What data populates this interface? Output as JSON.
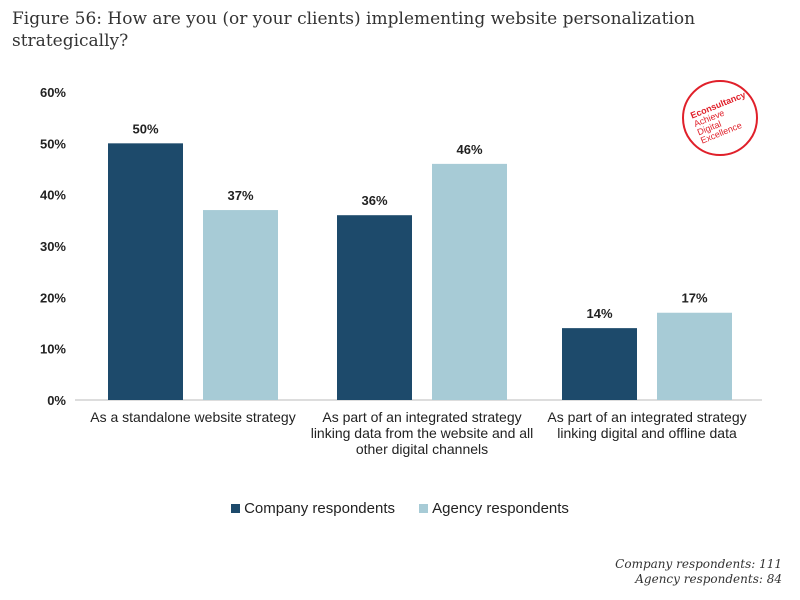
{
  "title": "Figure 56: How are you (or your clients) implementing website personalization strategically?",
  "logo": {
    "name": "Econsultancy",
    "tagline": "Achieve Digital Excellence"
  },
  "notes": [
    "Company respondents: 111",
    "Agency respondents: 84"
  ],
  "colors": {
    "company": "#1d4a6b",
    "agency": "#a7cbd6"
  },
  "chart_data": {
    "type": "bar",
    "title": "Figure 56: How are you (or your clients) implementing website personalization strategically?",
    "categories": [
      "As a standalone website strategy",
      "As part of an integrated strategy linking data from the website and all other digital channels",
      "As part of an integrated strategy linking digital and offline data"
    ],
    "series": [
      {
        "name": "Company respondents",
        "values": [
          50,
          36,
          14
        ],
        "labels": [
          "50%",
          "36%",
          "14%"
        ]
      },
      {
        "name": "Agency respondents",
        "values": [
          37,
          46,
          17
        ],
        "labels": [
          "37%",
          "46%",
          "17%"
        ]
      }
    ],
    "yticks": [
      "0%",
      "10%",
      "20%",
      "30%",
      "40%",
      "50%",
      "60%"
    ],
    "ylim": [
      0,
      60
    ],
    "grid": false,
    "legend": "bottom-center"
  }
}
